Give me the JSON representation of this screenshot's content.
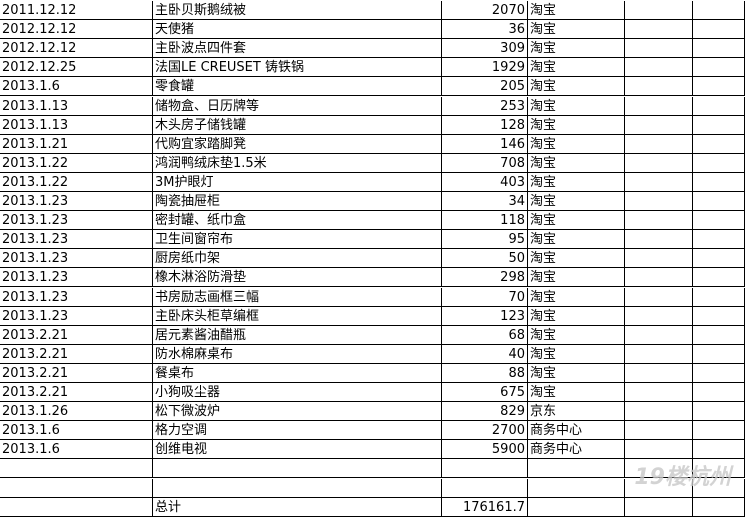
{
  "table": {
    "rows": [
      [
        "2011.12.12",
        "主卧贝斯鹅绒被",
        "2070",
        "淘宝"
      ],
      [
        "2012.12.12",
        "天使猪",
        "36",
        "淘宝"
      ],
      [
        "2012.12.12",
        "主卧波点四件套",
        "309",
        "淘宝"
      ],
      [
        "2012.12.25",
        "法国LE CREUSET 铸铁锅",
        "1929",
        "淘宝"
      ],
      [
        "2013.1.6",
        "零食罐",
        "205",
        "淘宝"
      ],
      [
        "2013.1.13",
        "储物盒、日历牌等",
        "253",
        "淘宝"
      ],
      [
        "2013.1.13",
        "木头房子储钱罐",
        "128",
        "淘宝"
      ],
      [
        "2013.1.21",
        "代购宜家踏脚凳",
        "146",
        "淘宝"
      ],
      [
        "2013.1.22",
        "鸿润鸭绒床垫1.5米",
        "708",
        "淘宝"
      ],
      [
        "2013.1.22",
        "3M护眼灯",
        "403",
        "淘宝"
      ],
      [
        "2013.1.23",
        "陶瓷抽屉柜",
        "34",
        "淘宝"
      ],
      [
        "2013.1.23",
        "密封罐、纸巾盒",
        "118",
        "淘宝"
      ],
      [
        "2013.1.23",
        "卫生间窗帘布",
        "95",
        "淘宝"
      ],
      [
        "2013.1.23",
        "厨房纸巾架",
        "50",
        "淘宝"
      ],
      [
        "2013.1.23",
        "橡木淋浴防滑垫",
        "298",
        "淘宝"
      ],
      [
        "2013.1.23",
        "书房励志画框三幅",
        "70",
        "淘宝"
      ],
      [
        "2013.1.23",
        "主卧床头柜草编框",
        "123",
        "淘宝"
      ],
      [
        "2013.2.21",
        "居元素酱油醋瓶",
        "68",
        "淘宝"
      ],
      [
        "2013.2.21",
        "防水棉麻桌布",
        "40",
        "淘宝"
      ],
      [
        "2013.2.21",
        "餐桌布",
        "88",
        "淘宝"
      ],
      [
        "2013.2.21",
        "小狗吸尘器",
        "675",
        "淘宝"
      ],
      [
        "2013.1.26",
        "松下微波炉",
        "829",
        "京东"
      ],
      [
        "2013.1.6",
        "格力空调",
        "2700",
        "商务中心"
      ],
      [
        "2013.1.6",
        "创维电视",
        "5900",
        "商务中心"
      ]
    ],
    "total_label": "总计",
    "total": "176161.7"
  },
  "watermark": "19楼杭州"
}
